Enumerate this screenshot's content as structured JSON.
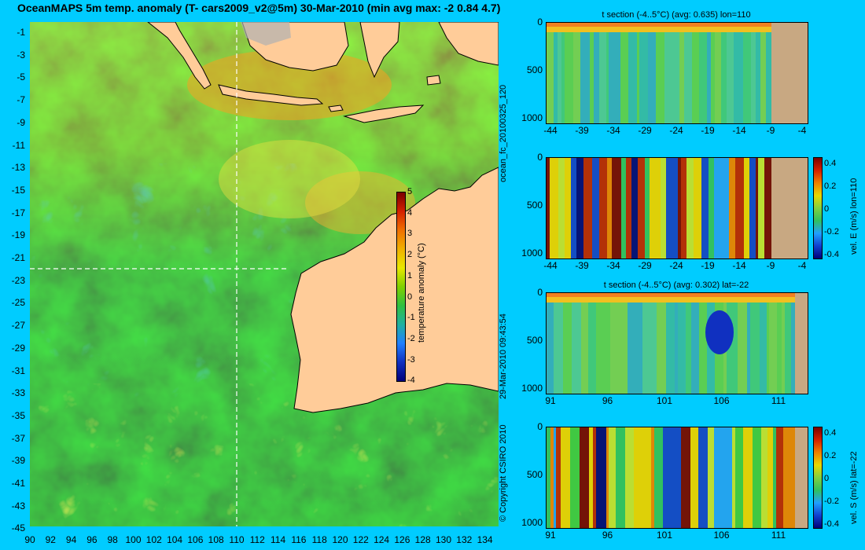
{
  "title": "OceanMAPS 5m temp. anomaly (T- cars2009_v2@5m) 30-Mar-2010 (min avg max: -2 0.84 4.7)",
  "map": {
    "lat_ticks": [
      "-1",
      "-3",
      "-5",
      "-7",
      "-9",
      "-11",
      "-13",
      "-15",
      "-17",
      "-19",
      "-21",
      "-23",
      "-25",
      "-27",
      "-29",
      "-31",
      "-33",
      "-35",
      "-37",
      "-39",
      "-41",
      "-43",
      "-45"
    ],
    "lon_ticks": [
      "90",
      "92",
      "94",
      "96",
      "98",
      "100",
      "102",
      "104",
      "106",
      "108",
      "110",
      "112",
      "114",
      "116",
      "118",
      "120",
      "122",
      "124",
      "126",
      "128",
      "130",
      "132",
      "134"
    ],
    "colorbar": {
      "label": "temperature anomaly (°C)",
      "ticks": [
        "5",
        "4",
        "3",
        "2",
        "1",
        "0",
        "-1",
        "-2",
        "-3",
        "-4"
      ]
    },
    "section_lines": {
      "lon": 110,
      "lat": -22
    }
  },
  "side_labels": {
    "run": "ocean_fc_20100325_120",
    "timestamp": "29-Mar-2010 09:43:54",
    "copyright": "© Copyright CSIRO 2010"
  },
  "panels": [
    {
      "title": "t section (-4..5°C) (avg: 0.635) lon=110",
      "yticks": [
        "0",
        "500",
        "1000"
      ],
      "xticks": [
        "-44",
        "-39",
        "-34",
        "-29",
        "-24",
        "-19",
        "-14",
        "-9",
        "-4"
      ],
      "variable": "temp",
      "seed": 11
    },
    {
      "title": "",
      "yticks": [
        "0",
        "500",
        "1000"
      ],
      "xticks": [
        "-44",
        "-39",
        "-34",
        "-29",
        "-24",
        "-19",
        "-14",
        "-9",
        "-4"
      ],
      "variable": "vel",
      "seed": 23,
      "colorbar": {
        "label": "vel. E (m/s) lon=110",
        "ticks": [
          "0.4",
          "0.2",
          "0",
          "-0.2",
          "-0.4"
        ]
      }
    },
    {
      "title": "t section (-4..5°C) (avg: 0.302) lat=-22",
      "yticks": [
        "0",
        "500",
        "1000"
      ],
      "xticks": [
        "91",
        "96",
        "101",
        "106",
        "111"
      ],
      "variable": "temp",
      "seed": 37
    },
    {
      "title": "",
      "yticks": [
        "0",
        "500",
        "1000"
      ],
      "xticks": [
        "91",
        "96",
        "101",
        "106",
        "111"
      ],
      "variable": "vel",
      "seed": 51,
      "colorbar": {
        "label": "vel. S (m/s) lat=-22",
        "ticks": [
          "0.4",
          "0.2",
          "0",
          "-0.2",
          "-0.4"
        ]
      }
    }
  ]
}
